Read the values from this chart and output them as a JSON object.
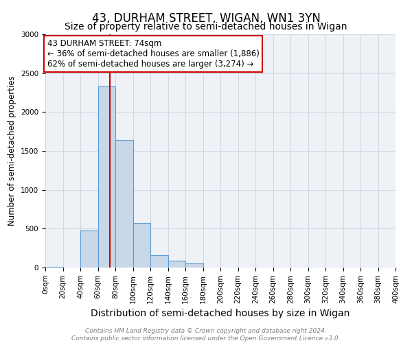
{
  "title": "43, DURHAM STREET, WIGAN, WN1 3YN",
  "subtitle": "Size of property relative to semi-detached houses in Wigan",
  "xlabel": "Distribution of semi-detached houses by size in Wigan",
  "ylabel": "Number of semi-detached properties",
  "property_size": 74,
  "property_label": "43 DURHAM STREET: 74sqm",
  "pct_smaller": 36,
  "pct_larger": 62,
  "n_smaller": 1886,
  "n_larger": 3274,
  "bin_edges": [
    0,
    20,
    40,
    60,
    80,
    100,
    120,
    140,
    160,
    180,
    200,
    220,
    240,
    260,
    280,
    300,
    320,
    340,
    360,
    380,
    400
  ],
  "bin_counts": [
    5,
    0,
    480,
    2330,
    1640,
    570,
    155,
    90,
    55,
    0,
    0,
    0,
    0,
    0,
    0,
    0,
    0,
    0,
    0,
    0
  ],
  "bar_color": "#c8d8e8",
  "bar_edge_color": "#5b9bd5",
  "vline_x": 74,
  "vline_color": "#cc0000",
  "annotation_box_color": "#cc0000",
  "ylim": [
    0,
    3000
  ],
  "yticks": [
    0,
    500,
    1000,
    1500,
    2000,
    2500,
    3000
  ],
  "grid_color": "#d0d8e0",
  "background_color": "#eef2f7",
  "footer_text": "Contains HM Land Registry data © Crown copyright and database right 2024.\nContains public sector information licensed under the Open Government Licence v3.0.",
  "title_fontsize": 12,
  "subtitle_fontsize": 10,
  "xlabel_fontsize": 10,
  "ylabel_fontsize": 8.5,
  "tick_fontsize": 7.5,
  "annotation_fontsize": 8.5,
  "footer_fontsize": 6.5
}
